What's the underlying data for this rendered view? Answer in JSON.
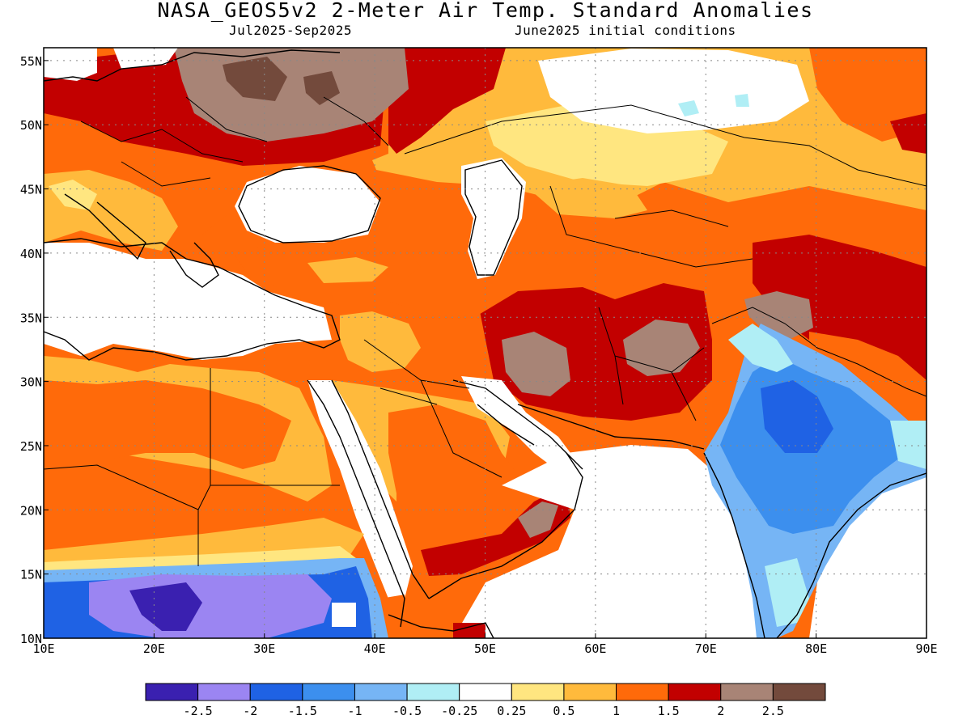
{
  "title": "NASA_GEOS5v2 2-Meter Air Temp. Standard Anomalies",
  "period": "Jul2025-Sep2025",
  "initial_conditions": "June2025 initial conditions",
  "map": {
    "lon_range": [
      10,
      90
    ],
    "lat_range": [
      10,
      56
    ],
    "lon_labels": [
      "10E",
      "20E",
      "30E",
      "40E",
      "50E",
      "60E",
      "70E",
      "80E",
      "90E"
    ],
    "lat_labels": [
      "10N",
      "15N",
      "20N",
      "25N",
      "30N",
      "35N",
      "40N",
      "45N",
      "50N",
      "55N"
    ],
    "grid": true
  },
  "colorbar": {
    "labels": [
      "-2.5",
      "-2",
      "-1.5",
      "-1",
      "-0.5",
      "-0.25",
      "0.25",
      "0.5",
      "1",
      "1.5",
      "2",
      "2.5"
    ],
    "colors": [
      "#3a20b0",
      "#9b85f2",
      "#1f62e4",
      "#3c8fee",
      "#76b5f5",
      "#b0eef5",
      "#ffffff",
      "#ffe680",
      "#ffba3c",
      "#ff6a0a",
      "#c20000",
      "#a88476",
      "#734a3c"
    ]
  },
  "colors": {
    "white": "#ffffff",
    "light_yellow": "#ffe680",
    "yellow_orange": "#ffba3c",
    "orange": "#ff6a0a",
    "red": "#c20000",
    "brown": "#a88476",
    "dark_brown": "#734a3c",
    "light_cyan": "#b0eef5",
    "light_blue": "#76b5f5",
    "mid_blue": "#3c8fee",
    "blue": "#1f62e4",
    "lavender": "#9b85f2",
    "indigo": "#3a20b0"
  }
}
